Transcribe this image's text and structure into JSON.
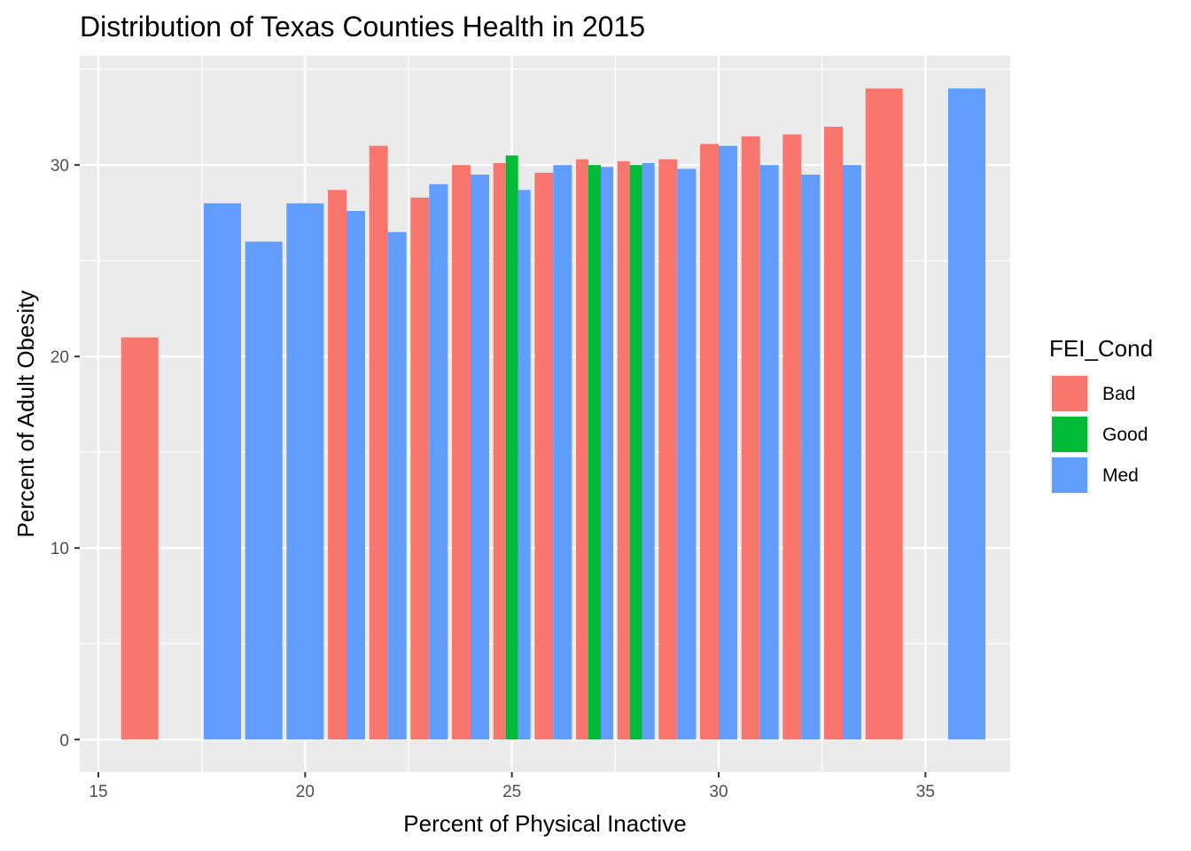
{
  "chart_data": {
    "type": "bar",
    "title": "Distribution of Texas Counties Health in 2015",
    "xlabel": "Percent of Physical Inactive",
    "ylabel": "Percent of Adult Obesity",
    "xlim": [
      14.55,
      37.05
    ],
    "ylim": [
      -1.7,
      35.7
    ],
    "x_ticks": [
      15,
      20,
      25,
      30,
      35
    ],
    "y_ticks": [
      0,
      10,
      20,
      30
    ],
    "grid": true,
    "legend": {
      "title": "FEI_Cond",
      "placement": "right",
      "entries": [
        {
          "name": "Bad",
          "color": "#F8766D"
        },
        {
          "name": "Good",
          "color": "#00BA38"
        },
        {
          "name": "Med",
          "color": "#619CFF"
        }
      ]
    },
    "bars": [
      {
        "x0": 15.55,
        "x1": 16.45,
        "y": 21.0,
        "cond": "Bad"
      },
      {
        "x0": 17.55,
        "x1": 18.45,
        "y": 28.0,
        "cond": "Med"
      },
      {
        "x0": 18.55,
        "x1": 19.45,
        "y": 26.0,
        "cond": "Med"
      },
      {
        "x0": 19.55,
        "x1": 20.45,
        "y": 28.0,
        "cond": "Med"
      },
      {
        "x0": 20.55,
        "x1": 21.0,
        "y": 28.7,
        "cond": "Bad"
      },
      {
        "x0": 21.0,
        "x1": 21.45,
        "y": 27.6,
        "cond": "Med"
      },
      {
        "x0": 21.55,
        "x1": 22.0,
        "y": 31.0,
        "cond": "Bad"
      },
      {
        "x0": 22.0,
        "x1": 22.45,
        "y": 26.5,
        "cond": "Med"
      },
      {
        "x0": 22.55,
        "x1": 23.0,
        "y": 28.3,
        "cond": "Bad"
      },
      {
        "x0": 23.0,
        "x1": 23.45,
        "y": 29.0,
        "cond": "Med"
      },
      {
        "x0": 23.55,
        "x1": 24.0,
        "y": 30.0,
        "cond": "Bad"
      },
      {
        "x0": 24.0,
        "x1": 24.45,
        "y": 29.5,
        "cond": "Med"
      },
      {
        "x0": 24.55,
        "x1": 24.85,
        "y": 30.1,
        "cond": "Bad"
      },
      {
        "x0": 24.85,
        "x1": 25.15,
        "y": 30.5,
        "cond": "Good"
      },
      {
        "x0": 25.15,
        "x1": 25.45,
        "y": 28.7,
        "cond": "Med"
      },
      {
        "x0": 25.55,
        "x1": 26.0,
        "y": 29.6,
        "cond": "Bad"
      },
      {
        "x0": 26.0,
        "x1": 26.45,
        "y": 30.0,
        "cond": "Med"
      },
      {
        "x0": 26.55,
        "x1": 26.85,
        "y": 30.3,
        "cond": "Bad"
      },
      {
        "x0": 26.85,
        "x1": 27.15,
        "y": 30.0,
        "cond": "Good"
      },
      {
        "x0": 27.15,
        "x1": 27.45,
        "y": 29.9,
        "cond": "Med"
      },
      {
        "x0": 27.55,
        "x1": 27.85,
        "y": 30.2,
        "cond": "Bad"
      },
      {
        "x0": 27.85,
        "x1": 28.15,
        "y": 30.0,
        "cond": "Good"
      },
      {
        "x0": 28.15,
        "x1": 28.45,
        "y": 30.1,
        "cond": "Med"
      },
      {
        "x0": 28.55,
        "x1": 29.0,
        "y": 30.3,
        "cond": "Bad"
      },
      {
        "x0": 29.0,
        "x1": 29.45,
        "y": 29.8,
        "cond": "Med"
      },
      {
        "x0": 29.55,
        "x1": 30.0,
        "y": 31.1,
        "cond": "Bad"
      },
      {
        "x0": 30.0,
        "x1": 30.45,
        "y": 31.0,
        "cond": "Med"
      },
      {
        "x0": 30.55,
        "x1": 31.0,
        "y": 31.5,
        "cond": "Bad"
      },
      {
        "x0": 31.0,
        "x1": 31.45,
        "y": 30.0,
        "cond": "Med"
      },
      {
        "x0": 31.55,
        "x1": 32.0,
        "y": 31.6,
        "cond": "Bad"
      },
      {
        "x0": 32.0,
        "x1": 32.45,
        "y": 29.5,
        "cond": "Med"
      },
      {
        "x0": 32.55,
        "x1": 33.0,
        "y": 32.0,
        "cond": "Bad"
      },
      {
        "x0": 33.0,
        "x1": 33.45,
        "y": 30.0,
        "cond": "Med"
      },
      {
        "x0": 33.55,
        "x1": 34.45,
        "y": 34.0,
        "cond": "Bad"
      },
      {
        "x0": 35.55,
        "x1": 36.45,
        "y": 34.0,
        "cond": "Med"
      }
    ]
  }
}
